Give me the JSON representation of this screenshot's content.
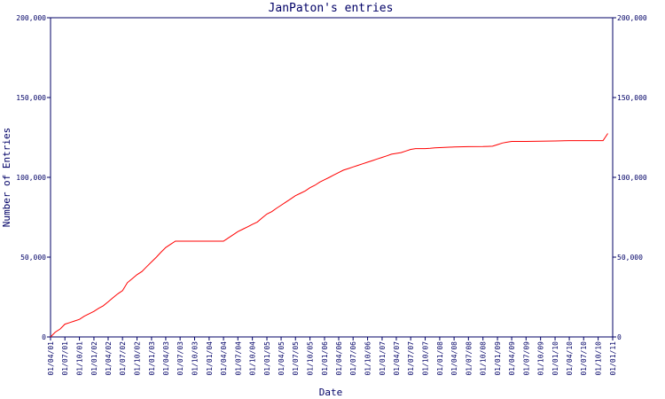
{
  "chart_data": {
    "type": "line",
    "title": "JanPaton's entries",
    "xlabel": "Date",
    "ylabel": "Number of Entries",
    "ylim": [
      0,
      200000
    ],
    "y_ticks": [
      0,
      50000,
      100000,
      150000,
      200000
    ],
    "y_tick_labels": [
      "0",
      "50,000",
      "100,000",
      "150,000",
      "200,000"
    ],
    "x_tick_labels": [
      "01/04/01",
      "01/07/01",
      "01/10/01",
      "01/01/02",
      "01/04/02",
      "01/07/02",
      "01/10/02",
      "01/01/03",
      "01/04/03",
      "01/07/03",
      "01/10/03",
      "01/01/04",
      "01/04/04",
      "01/07/04",
      "01/10/04",
      "01/01/05",
      "01/04/05",
      "01/07/05",
      "01/10/05",
      "01/01/06",
      "01/04/06",
      "01/07/06",
      "01/10/06",
      "01/01/07",
      "01/04/07",
      "01/07/07",
      "01/10/07",
      "01/01/08",
      "01/04/08",
      "01/07/08",
      "01/10/08",
      "01/01/09",
      "01/04/09",
      "01/07/09",
      "01/10/09",
      "01/01/10",
      "01/04/10",
      "01/07/10",
      "01/10/10",
      "01/01/11"
    ],
    "grid": false,
    "line_color": "#ff0000",
    "axis_color": "#000066",
    "series": [
      {
        "x": [
          "01/04/01",
          "01/05/01",
          "01/06/01",
          "01/07/01",
          "01/08/01",
          "01/09/01",
          "01/10/01",
          "01/11/01",
          "01/12/01",
          "01/01/02",
          "01/02/02",
          "01/03/02",
          "01/04/02",
          "01/05/02",
          "01/06/02",
          "01/07/02",
          "01/08/02",
          "01/09/02",
          "01/10/02",
          "01/11/02",
          "01/12/02",
          "01/01/03",
          "01/02/03",
          "01/03/03",
          "01/04/03",
          "01/05/03",
          "01/06/03",
          "01/07/03",
          "01/08/03",
          "01/09/03",
          "01/10/03",
          "01/11/03",
          "01/12/03",
          "01/01/04",
          "01/02/04",
          "01/03/04",
          "01/04/04",
          "01/05/04",
          "01/06/04",
          "01/07/04",
          "01/08/04",
          "01/09/04",
          "01/10/04",
          "01/11/04",
          "01/12/04",
          "01/01/05",
          "01/02/05",
          "01/03/05",
          "01/04/05",
          "01/05/05",
          "01/06/05",
          "01/07/05",
          "01/08/05",
          "01/09/05",
          "01/10/05",
          "01/11/05",
          "01/12/05",
          "01/01/06",
          "01/02/06",
          "01/03/06",
          "01/04/06",
          "01/05/06",
          "01/06/06",
          "01/07/06",
          "01/08/06",
          "01/09/06",
          "01/10/06",
          "01/11/06",
          "01/12/06",
          "01/01/07",
          "01/02/07",
          "01/03/07",
          "01/04/07",
          "01/05/07",
          "01/06/07",
          "01/07/07",
          "01/08/07",
          "01/09/07",
          "01/10/07",
          "01/11/07",
          "01/12/07",
          "01/01/08",
          "01/04/08",
          "01/07/08",
          "01/10/08",
          "01/11/08",
          "01/12/08",
          "01/01/09",
          "01/02/09",
          "01/03/09",
          "01/04/09",
          "01/07/09",
          "01/10/09",
          "01/01/10",
          "01/04/10",
          "01/07/10",
          "01/10/10",
          "01/11/10",
          "01/12/10"
        ],
        "values": [
          0,
          3000,
          5000,
          8000,
          9000,
          10000,
          11000,
          13000,
          14500,
          16000,
          18000,
          19500,
          22000,
          24500,
          27000,
          29000,
          34000,
          36500,
          39000,
          41000,
          44000,
          47000,
          50000,
          53000,
          56000,
          58000,
          60000,
          60000,
          60000,
          60000,
          60000,
          60000,
          60000,
          60000,
          60000,
          60000,
          60000,
          62000,
          64000,
          66000,
          67500,
          69000,
          70500,
          72000,
          74500,
          77000,
          78500,
          80500,
          82500,
          84500,
          86500,
          88500,
          90000,
          91500,
          93500,
          95000,
          97000,
          98500,
          100000,
          101500,
          103000,
          104500,
          105500,
          106500,
          107500,
          108500,
          109500,
          110500,
          111500,
          112500,
          113500,
          114500,
          115000,
          115500,
          116500,
          117500,
          118000,
          118000,
          118000,
          118200,
          118500,
          118600,
          119000,
          119200,
          119300,
          119400,
          119500,
          120500,
          121500,
          122000,
          122500,
          122500,
          122600,
          122800,
          123000,
          123000,
          123000,
          123000,
          127500
        ]
      }
    ]
  }
}
